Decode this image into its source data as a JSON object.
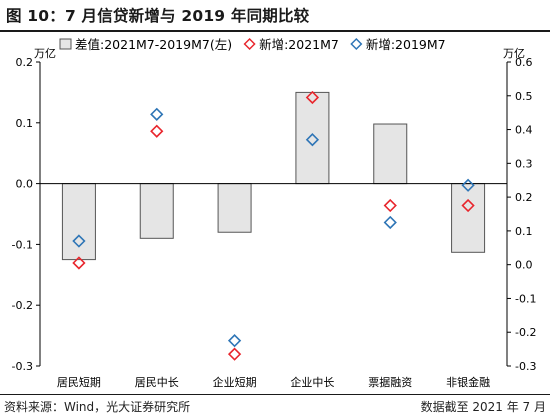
{
  "header": {
    "title": "图 10：7 月信贷新增与 2019 年同期比较"
  },
  "footer": {
    "source": "资料来源：Wind，光大证券研究所",
    "cutoff": "数据截至 2021 年 7 月"
  },
  "colors": {
    "bar_fill": "#e5e5e5",
    "bar_stroke": "#555555",
    "red": "#e8262d",
    "blue": "#2e75b6"
  },
  "chart_data": {
    "type": "bar",
    "categories": [
      "居民短期",
      "居民中长",
      "企业短期",
      "企业中长",
      "票据融资",
      "非银金融"
    ],
    "series": [
      {
        "name": "差值:2021M7-2019M7(左)",
        "kind": "bar",
        "axis": "left",
        "values": [
          -0.125,
          -0.09,
          -0.08,
          0.15,
          0.098,
          -0.113
        ]
      },
      {
        "name": "新增:2021M7",
        "kind": "marker",
        "axis": "right",
        "color": "#e8262d",
        "values": [
          0.005,
          0.395,
          -0.265,
          0.495,
          0.175,
          0.175
        ]
      },
      {
        "name": "新增:2019M7",
        "kind": "marker",
        "axis": "right",
        "color": "#2e75b6",
        "values": [
          0.07,
          0.445,
          -0.225,
          0.37,
          0.125,
          0.235
        ]
      }
    ],
    "y_left": {
      "unit": "万亿",
      "min": -0.3,
      "max": 0.2,
      "ticks": [
        0.2,
        0.1,
        0.0,
        -0.1,
        -0.2,
        -0.3
      ],
      "tick_labels": [
        "0.2",
        "0.1",
        "0.0",
        "-0.1",
        "-0.2",
        "-0.3"
      ]
    },
    "y_right": {
      "unit": "万亿",
      "min": -0.3,
      "max": 0.6,
      "ticks": [
        0.6,
        0.5,
        0.4,
        0.3,
        0.2,
        0.1,
        0.0,
        -0.1,
        -0.2,
        -0.3
      ],
      "tick_labels": [
        "0.6",
        "0.5",
        "0.4",
        "0.3",
        "0.2",
        "0.1",
        "0.0",
        "-0.1",
        "-0.2",
        "-0.3"
      ]
    },
    "legend": {
      "position": "top"
    },
    "grid": false
  }
}
